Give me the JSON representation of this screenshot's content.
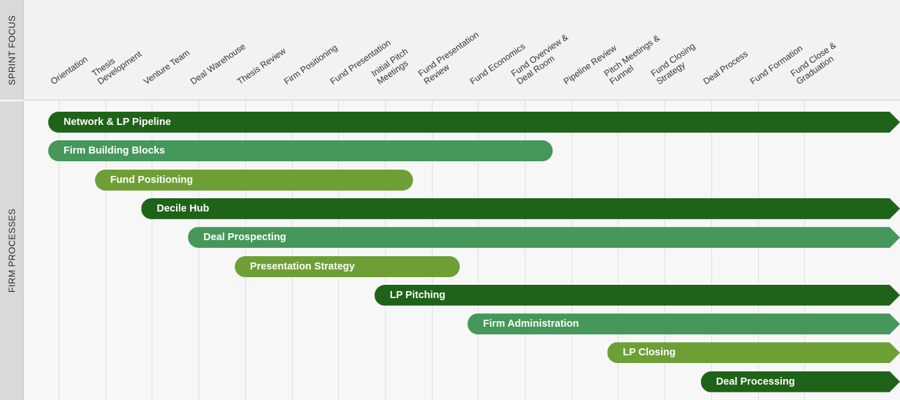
{
  "side_labels": {
    "top": "SPRINT FOCUS",
    "bottom": "FIRM PROCESSES"
  },
  "sprints": [
    [
      "Orientation"
    ],
    [
      "Thesis",
      "Development"
    ],
    [
      "Venture Team"
    ],
    [
      "Deal Warehouse"
    ],
    [
      "Thesis Review"
    ],
    [
      "Firm Positioning"
    ],
    [
      "Fund Presentation"
    ],
    [
      "Initial Pitch",
      "Meetings"
    ],
    [
      "Fund Presentation",
      "Review"
    ],
    [
      "Fund Economics"
    ],
    [
      "Fund Overview &",
      "Deal Room"
    ],
    [
      "Pipeline Review"
    ],
    [
      "Pitch Meetings &",
      "Funnel"
    ],
    [
      "Fund Closing",
      "Strategy"
    ],
    [
      "Deal Process"
    ],
    [
      "Fund Formation"
    ],
    [
      "Fund Close &",
      "Graduation"
    ]
  ],
  "processes": [
    {
      "label": "Network & LP Pipeline",
      "start_sprint": 1,
      "end_sprint": "ongoing",
      "color": "#1f6318"
    },
    {
      "label": "Firm Building Blocks",
      "start_sprint": 1,
      "end_sprint": 11,
      "color": "#45975a"
    },
    {
      "label": "Fund Positioning",
      "start_sprint": 2,
      "end_sprint": 8,
      "color": "#6e9f35"
    },
    {
      "label": "Decile Hub",
      "start_sprint": 3,
      "end_sprint": "ongoing",
      "color": "#1f6318"
    },
    {
      "label": "Deal Prospecting",
      "start_sprint": 4,
      "end_sprint": "ongoing",
      "color": "#45975a"
    },
    {
      "label": "Presentation Strategy",
      "start_sprint": 5,
      "end_sprint": 9,
      "color": "#6e9f35"
    },
    {
      "label": "LP Pitching",
      "start_sprint": 8,
      "end_sprint": "ongoing",
      "color": "#1f6318"
    },
    {
      "label": "Firm Administration",
      "start_sprint": 10,
      "end_sprint": "ongoing",
      "color": "#45975a"
    },
    {
      "label": "LP Closing",
      "start_sprint": 13,
      "end_sprint": "ongoing",
      "color": "#6e9f35"
    },
    {
      "label": "Deal Processing",
      "start_sprint": 15,
      "end_sprint": "ongoing",
      "color": "#1f6318"
    }
  ]
}
